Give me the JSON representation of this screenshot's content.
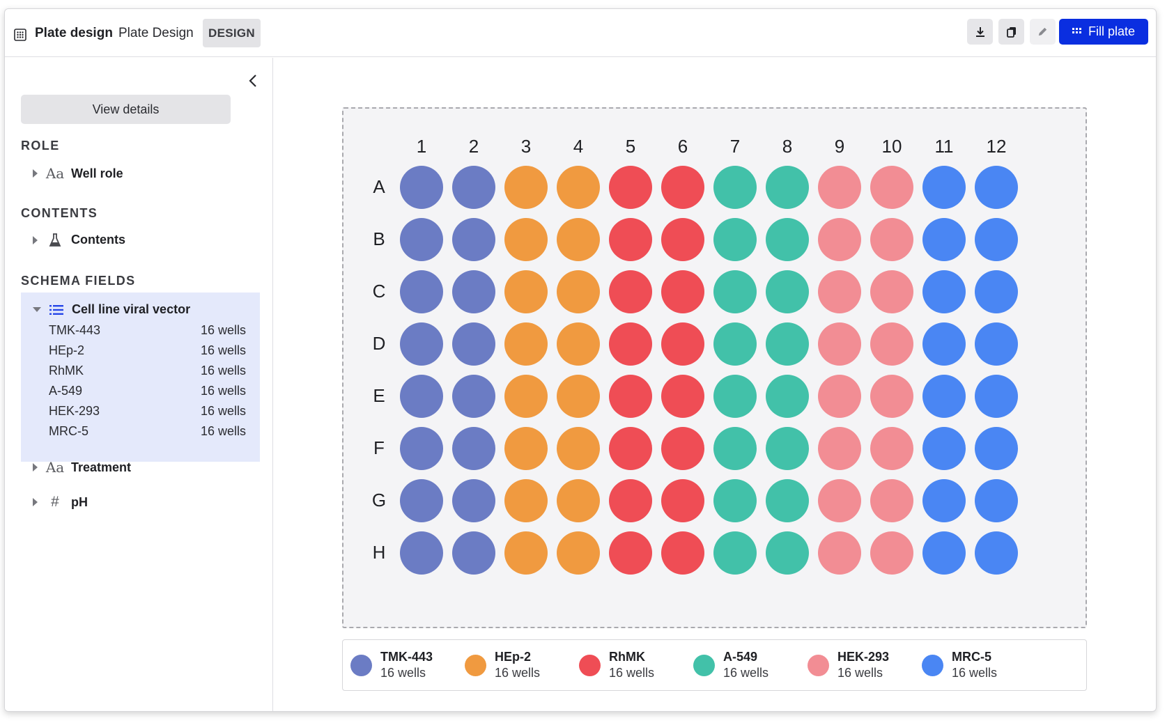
{
  "header": {
    "app_title": "Plate design",
    "doc_title": "Plate Design",
    "mode_badge": "DESIGN",
    "toolbar": {
      "download_icon": "download-icon",
      "copy_icon": "copy-icon",
      "edit_icon": "pencil-icon",
      "fill_button_label": "Fill plate"
    }
  },
  "sidebar": {
    "view_details_label": "View details",
    "role_title": "ROLE",
    "role_item": "Well role",
    "contents_title": "CONTENTS",
    "contents_item": "Contents",
    "schema_title": "SCHEMA FIELDS",
    "schema_field": {
      "label": "Cell line viral vector",
      "items": [
        {
          "name": "TMK-443",
          "count": "16 wells"
        },
        {
          "name": "HEp-2",
          "count": "16 wells"
        },
        {
          "name": "RhMK",
          "count": "16 wells"
        },
        {
          "name": "A-549",
          "count": "16 wells"
        },
        {
          "name": "HEK-293",
          "count": "16 wells"
        },
        {
          "name": "MRC-5",
          "count": "16 wells"
        }
      ]
    },
    "other_fields": [
      {
        "label": "Treatment",
        "icon": "text-type-icon"
      },
      {
        "label": "pH",
        "icon": "hash-icon"
      }
    ]
  },
  "plate": {
    "columns": [
      "1",
      "2",
      "3",
      "4",
      "5",
      "6",
      "7",
      "8",
      "9",
      "10",
      "11",
      "12"
    ],
    "rows": [
      "A",
      "B",
      "C",
      "D",
      "E",
      "F",
      "G",
      "H"
    ],
    "column_groups": [
      0,
      0,
      1,
      1,
      2,
      2,
      3,
      3,
      4,
      4,
      5,
      5
    ]
  },
  "legend": [
    {
      "name": "TMK-443",
      "count": "16 wells",
      "color": "#6b7cc4"
    },
    {
      "name": "HEp-2",
      "count": "16 wells",
      "color": "#f09a40"
    },
    {
      "name": "RhMK",
      "count": "16 wells",
      "color": "#ef4d55"
    },
    {
      "name": "A-549",
      "count": "16 wells",
      "color": "#42c1a9"
    },
    {
      "name": "HEK-293",
      "count": "16 wells",
      "color": "#f28d94"
    },
    {
      "name": "MRC-5",
      "count": "16 wells",
      "color": "#4a86f3"
    }
  ]
}
